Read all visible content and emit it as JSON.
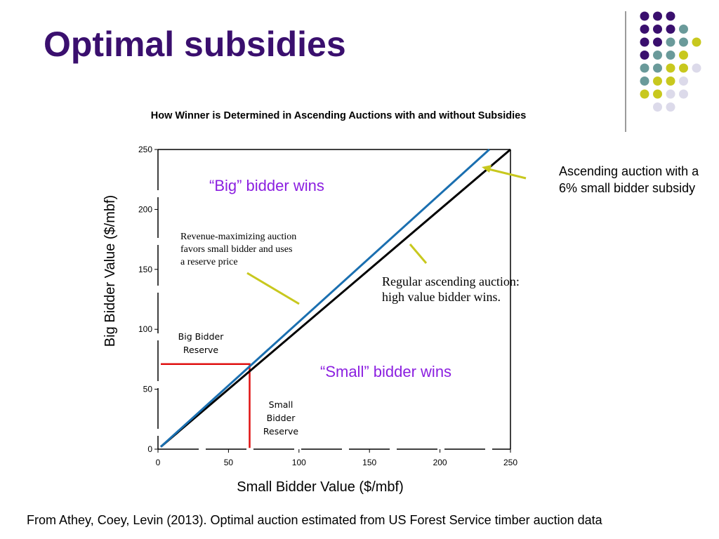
{
  "slide": {
    "title": "Optimal subsidies",
    "footer": "From Athey, Coey, Levin (2013). Optimal auction estimated from US Forest Service timber auction data",
    "side_note_lines": [
      "Ascending auction with a",
      "6% small bidder subsidy"
    ]
  },
  "colors": {
    "title": "#3a0f6e",
    "region_label": "#8b1fe0",
    "regular_line": "#000000",
    "subsidy_line": "#1a6fb0",
    "reserve_line": "#e01010",
    "arrow": "#c8c81e",
    "dots": [
      "#3a0f6e",
      "#6a9a9a",
      "#c8c81e",
      "#dcdaea"
    ]
  },
  "decoration": {
    "dot_rows": [
      [
        "purple",
        "purple",
        "purple"
      ],
      [
        "purple",
        "purple",
        "purple",
        "teal"
      ],
      [
        "purple",
        "purple",
        "teal",
        "teal",
        "lime"
      ],
      [
        "purple",
        "teal",
        "teal",
        "lime"
      ],
      [
        "teal",
        "teal",
        "lime",
        "lime",
        "lavender"
      ],
      [
        "teal",
        "lime",
        "lime",
        "lavender"
      ],
      [
        "lime",
        "lime",
        "lavender",
        "lavender"
      ],
      [
        "lavender",
        "lavender"
      ]
    ]
  },
  "chart_data": {
    "type": "line",
    "title": "How Winner is Determined in Ascending Auctions with and without Subsidies",
    "xlabel": "Small Bidder Value ($/mbf)",
    "ylabel": "Big Bidder Value ($/mbf)",
    "xlim": [
      0,
      250
    ],
    "ylim": [
      0,
      250
    ],
    "xticks": [
      0,
      50,
      100,
      150,
      200,
      250
    ],
    "yticks": [
      0,
      50,
      100,
      150,
      200,
      250
    ],
    "grid": false,
    "series": [
      {
        "key": "regular",
        "points": [
          [
            2,
            2
          ],
          [
            250,
            250
          ]
        ]
      },
      {
        "key": "subsidy",
        "points": [
          [
            2,
            2
          ],
          [
            235,
            250
          ]
        ]
      },
      {
        "key": "reserve",
        "points": [
          [
            2,
            71
          ],
          [
            65,
            71
          ],
          [
            65,
            1
          ]
        ]
      }
    ],
    "annotations": {
      "big_wins": "“Big” bidder wins",
      "small_wins": "“Small” bidder wins",
      "revenue_lines": [
        "Revenue-maximizing auction",
        "favors small bidder and uses",
        "a reserve price"
      ],
      "regular_lines": [
        "Regular ascending auction:",
        "high value bidder wins."
      ],
      "big_reserve_lines": [
        "Big Bidder",
        "Reserve"
      ],
      "small_reserve_lines": [
        "Small",
        "Bidder",
        "Reserve"
      ]
    }
  }
}
